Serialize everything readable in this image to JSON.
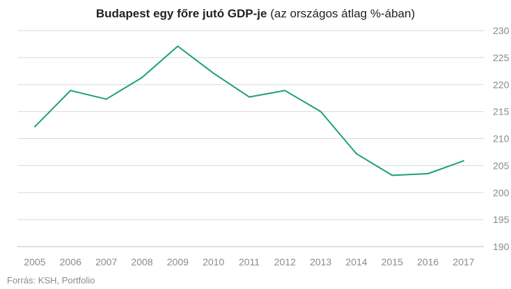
{
  "chart_data": {
    "type": "line",
    "title_bold": "Budapest egy főre jutó GDP-je",
    "title_rest": "(az országos átlag %-ában)",
    "categories": [
      "2005",
      "2006",
      "2007",
      "2008",
      "2009",
      "2010",
      "2011",
      "2012",
      "2013",
      "2014",
      "2015",
      "2016",
      "2017"
    ],
    "series": [
      {
        "values": [
          212.2,
          218.9,
          217.3,
          221.3,
          227.1,
          222.1,
          217.7,
          218.9,
          215.0,
          207.2,
          203.2,
          203.5,
          205.9
        ]
      }
    ],
    "ylim": [
      190,
      230
    ],
    "yticks": [
      190,
      195,
      200,
      205,
      210,
      215,
      220,
      225,
      230
    ],
    "xlabel": "",
    "ylabel": "",
    "grid": true,
    "legend": "none",
    "line_color": "#1a9e7c"
  },
  "source": "Forrás: KSH, Portfolio"
}
